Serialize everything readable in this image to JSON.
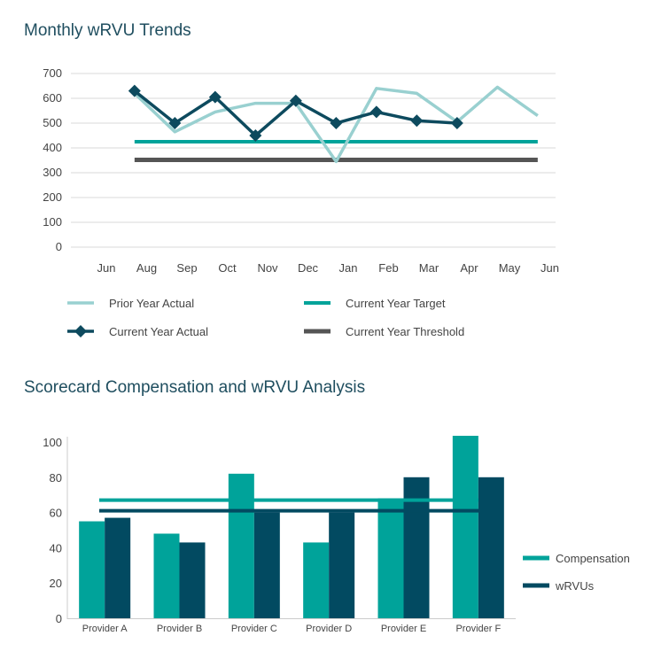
{
  "chart_data": [
    {
      "type": "line",
      "title": "Monthly wRVU Trends",
      "categories": [
        "Jun",
        "Aug",
        "Sep",
        "Oct",
        "Nov",
        "Dec",
        "Jan",
        "Feb",
        "Mar",
        "Apr",
        "May",
        "Jun"
      ],
      "ylim": [
        0,
        700
      ],
      "yticks": [
        0,
        100,
        200,
        300,
        400,
        500,
        600,
        700
      ],
      "grid": true,
      "legend_position": "bottom",
      "series": [
        {
          "name": "Prior Year Actual",
          "color": "#99d0d0",
          "marker": "none",
          "x": [
            0.7,
            1.7,
            2.7,
            3.7,
            4.7,
            5.7,
            6.7,
            7.7,
            8.7,
            9.7,
            10.7
          ],
          "values": [
            620,
            465,
            545,
            580,
            580,
            345,
            640,
            620,
            505,
            645,
            530
          ]
        },
        {
          "name": "Current Year Actual",
          "color": "#0d4a5e",
          "marker": "diamond",
          "x": [
            0.7,
            1.7,
            2.7,
            3.7,
            4.7,
            5.7,
            6.7,
            7.7,
            8.7
          ],
          "values": [
            630,
            500,
            605,
            450,
            590,
            500,
            545,
            510,
            500
          ]
        },
        {
          "name": "Current Year Target",
          "color": "#00a39a",
          "marker": "none",
          "x": [
            0.7,
            10.7
          ],
          "values": [
            425,
            425
          ]
        },
        {
          "name": "Current Year Threshold",
          "color": "#555555",
          "marker": "none",
          "x": [
            0.7,
            10.7
          ],
          "values": [
            352,
            352
          ]
        }
      ]
    },
    {
      "type": "bar",
      "title": "Scorecard Compensation and wRVU Analysis",
      "categories": [
        "Provider A",
        "Provider B",
        "Provider C",
        "Provider D",
        "Provider E",
        "Provider F"
      ],
      "ylim": [
        0,
        100
      ],
      "yticks": [
        0,
        20,
        40,
        60,
        80,
        100
      ],
      "grid": false,
      "legend_position": "right",
      "series": [
        {
          "name": "Compensation",
          "color": "#00a39a",
          "values": [
            55,
            48,
            82,
            43,
            68,
            104
          ]
        },
        {
          "name": "wRVUs",
          "color": "#024a61",
          "values": [
            57,
            43,
            60,
            60,
            80,
            80
          ]
        }
      ],
      "reference_lines": [
        {
          "value": 67,
          "color": "#00a39a"
        },
        {
          "value": 61,
          "color": "#024a61"
        }
      ]
    }
  ]
}
